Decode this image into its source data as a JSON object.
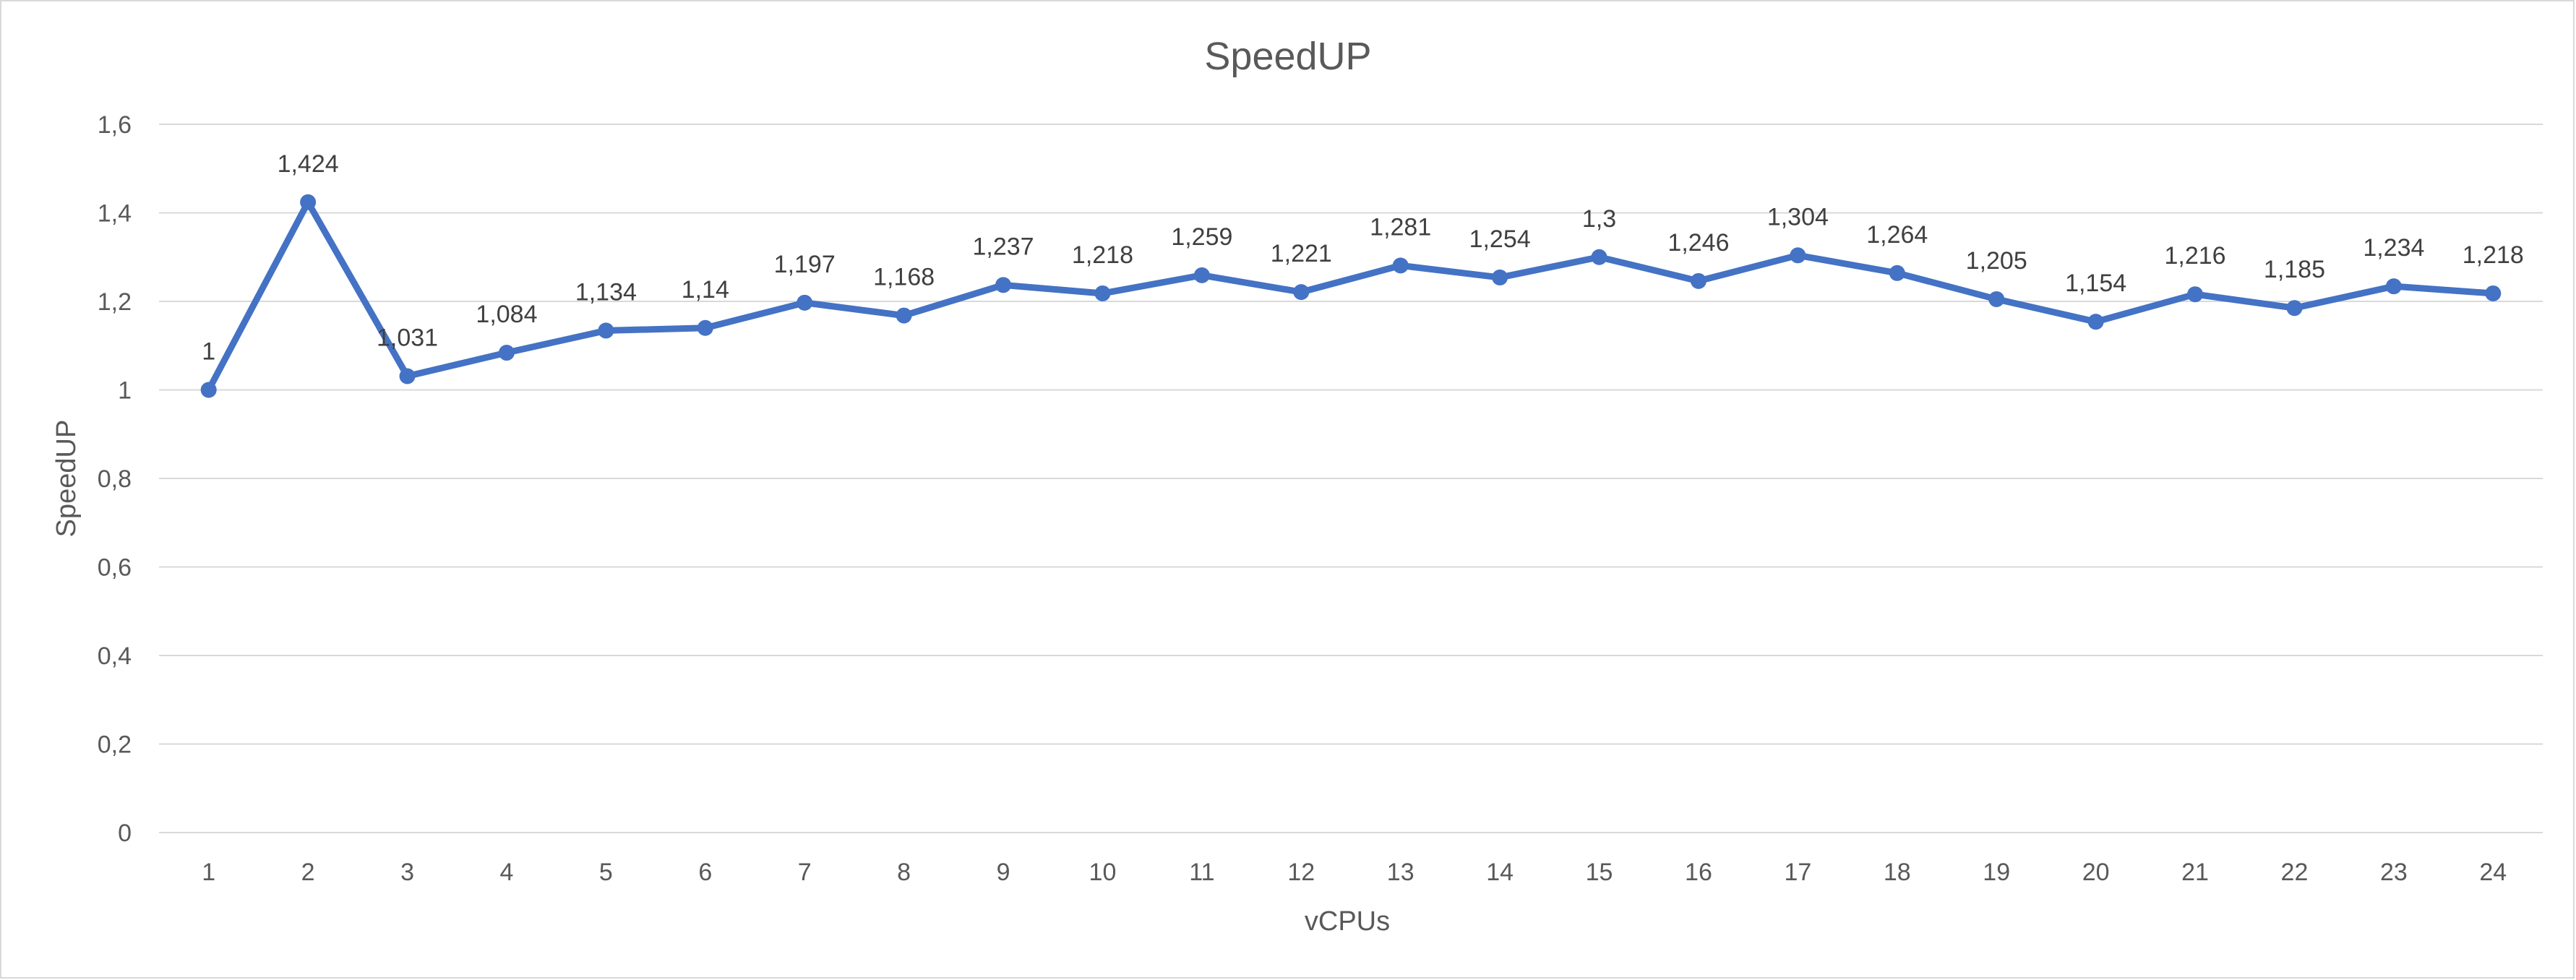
{
  "chart_data": {
    "type": "line",
    "title": "SpeedUP",
    "xlabel": "vCPUs",
    "ylabel": "SpeedUP",
    "ylim": [
      0,
      1.6
    ],
    "yticks": [
      "0",
      "0,2",
      "0,4",
      "0,6",
      "0,8",
      "1",
      "1,2",
      "1,4",
      "1,6"
    ],
    "ytick_values": [
      0,
      0.2,
      0.4,
      0.6,
      0.8,
      1.0,
      1.2,
      1.4,
      1.6
    ],
    "categories": [
      "1",
      "2",
      "3",
      "4",
      "5",
      "6",
      "7",
      "8",
      "9",
      "10",
      "11",
      "12",
      "13",
      "14",
      "15",
      "16",
      "17",
      "18",
      "19",
      "20",
      "21",
      "22",
      "23",
      "24"
    ],
    "series": [
      {
        "values": [
          1,
          1.424,
          1.031,
          1.084,
          1.134,
          1.14,
          1.197,
          1.168,
          1.237,
          1.218,
          1.259,
          1.221,
          1.281,
          1.254,
          1.3,
          1.246,
          1.304,
          1.264,
          1.205,
          1.154,
          1.216,
          1.185,
          1.234,
          1.218
        ],
        "labels": [
          "1",
          "1,424",
          "1,031",
          "1,084",
          "1,134",
          "1,14",
          "1,197",
          "1,168",
          "1,237",
          "1,218",
          "1,259",
          "1,221",
          "1,281",
          "1,254",
          "1,3",
          "1,246",
          "1,304",
          "1,264",
          "1,205",
          "1,154",
          "1,216",
          "1,185",
          "1,234",
          "1,218"
        ],
        "color": "#4472c4"
      }
    ],
    "grid": true,
    "legend": "none"
  }
}
